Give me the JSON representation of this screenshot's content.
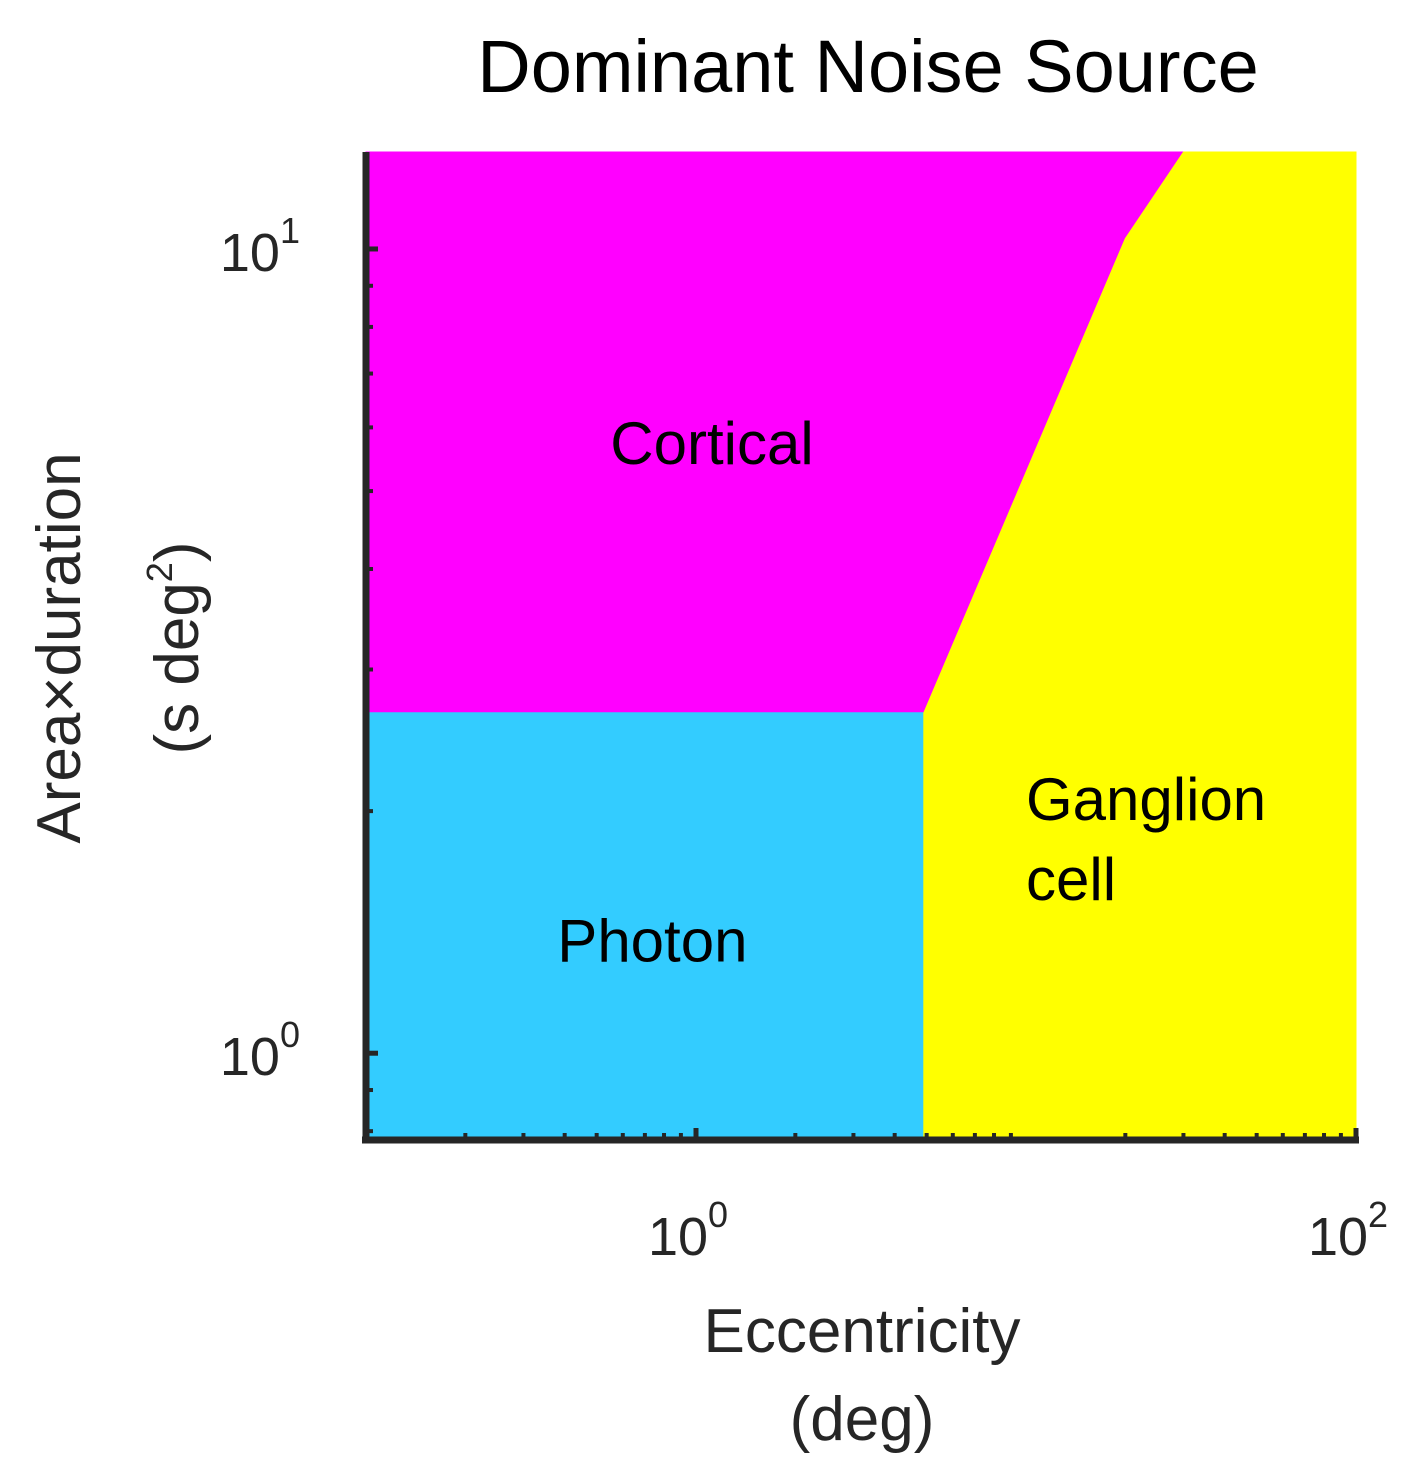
{
  "chart_data": {
    "type": "area",
    "title": "Dominant Noise Source",
    "xlabel": [
      "Eccentricity",
      "(deg)"
    ],
    "ylabel": {
      "main": "Area×duration",
      "unit_open": "(s deg",
      "unit_exp": "2",
      "unit_close": ")"
    },
    "xscale": "log",
    "yscale": "log",
    "xlim": [
      0.1,
      100
    ],
    "ylim": [
      0.78,
      13.2
    ],
    "xticks": [
      {
        "value": 1,
        "base": "10",
        "exp": "0"
      },
      {
        "value": 100,
        "base": "10",
        "exp": "2"
      }
    ],
    "yticks": [
      {
        "value": 1,
        "base": "10",
        "exp": "0"
      },
      {
        "value": 10,
        "base": "10",
        "exp": "1"
      }
    ],
    "regions": [
      {
        "name": "Cortical",
        "color": "#ff00ff",
        "polygon": [
          [
            0.1,
            2.65
          ],
          [
            4.9,
            2.65
          ],
          [
            20,
            10.3
          ],
          [
            30,
            13.2
          ],
          [
            0.1,
            13.2
          ]
        ],
        "label": [
          "Cortical"
        ],
        "label_at": [
          0.55,
          5.4
        ]
      },
      {
        "name": "Photon",
        "color": "#33ccff",
        "polygon": [
          [
            0.1,
            0.78
          ],
          [
            4.9,
            0.78
          ],
          [
            4.9,
            2.65
          ],
          [
            0.1,
            2.65
          ]
        ],
        "label": [
          "Photon"
        ],
        "label_at": [
          0.38,
          1.3
        ]
      },
      {
        "name": "Ganglion cell",
        "color": "#ffff00",
        "polygon": [
          [
            4.9,
            0.78
          ],
          [
            100,
            0.78
          ],
          [
            100,
            13.2
          ],
          [
            30,
            13.2
          ],
          [
            20,
            10.3
          ],
          [
            4.9,
            2.65
          ]
        ],
        "label": [
          "Ganglion",
          "cell"
        ],
        "label_at": [
          10,
          1.95
        ]
      }
    ]
  }
}
